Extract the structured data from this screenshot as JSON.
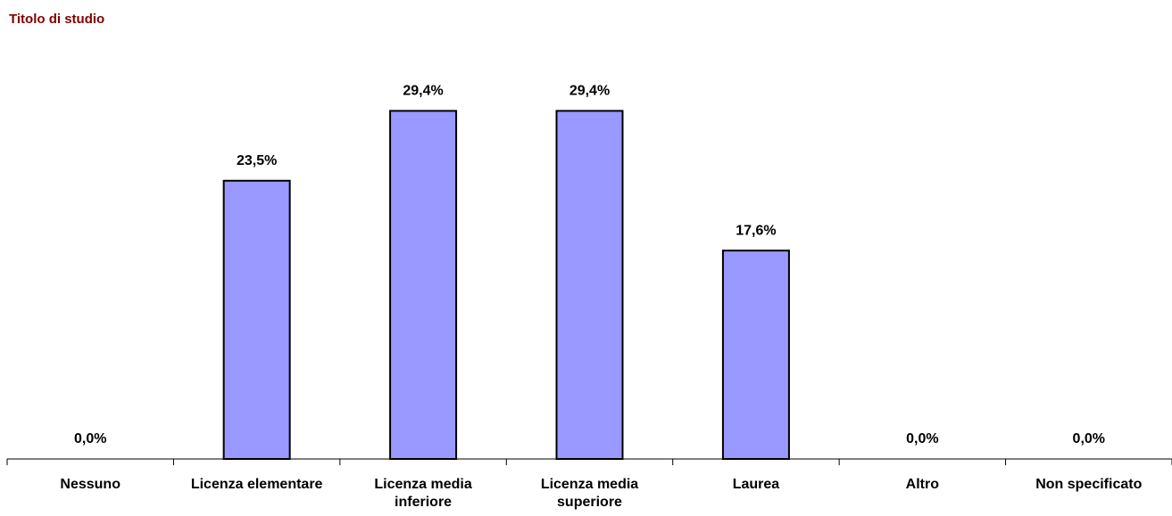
{
  "chart_data": {
    "type": "bar",
    "title": "Titolo di studio",
    "categories": [
      "Nessuno",
      "Licenza elementare",
      "Licenza media inferiore",
      "Licenza media superiore",
      "Laurea",
      "Altro",
      "Non specificato"
    ],
    "values": [
      0,
      23.5,
      29.4,
      29.4,
      17.6,
      0,
      0
    ],
    "value_labels": [
      "0,0%",
      "23,5%",
      "29,4%",
      "29,4%",
      "17,6%",
      "0,0%",
      "0,0%"
    ],
    "color": "#9999ff",
    "ylim": [
      0,
      35
    ]
  }
}
